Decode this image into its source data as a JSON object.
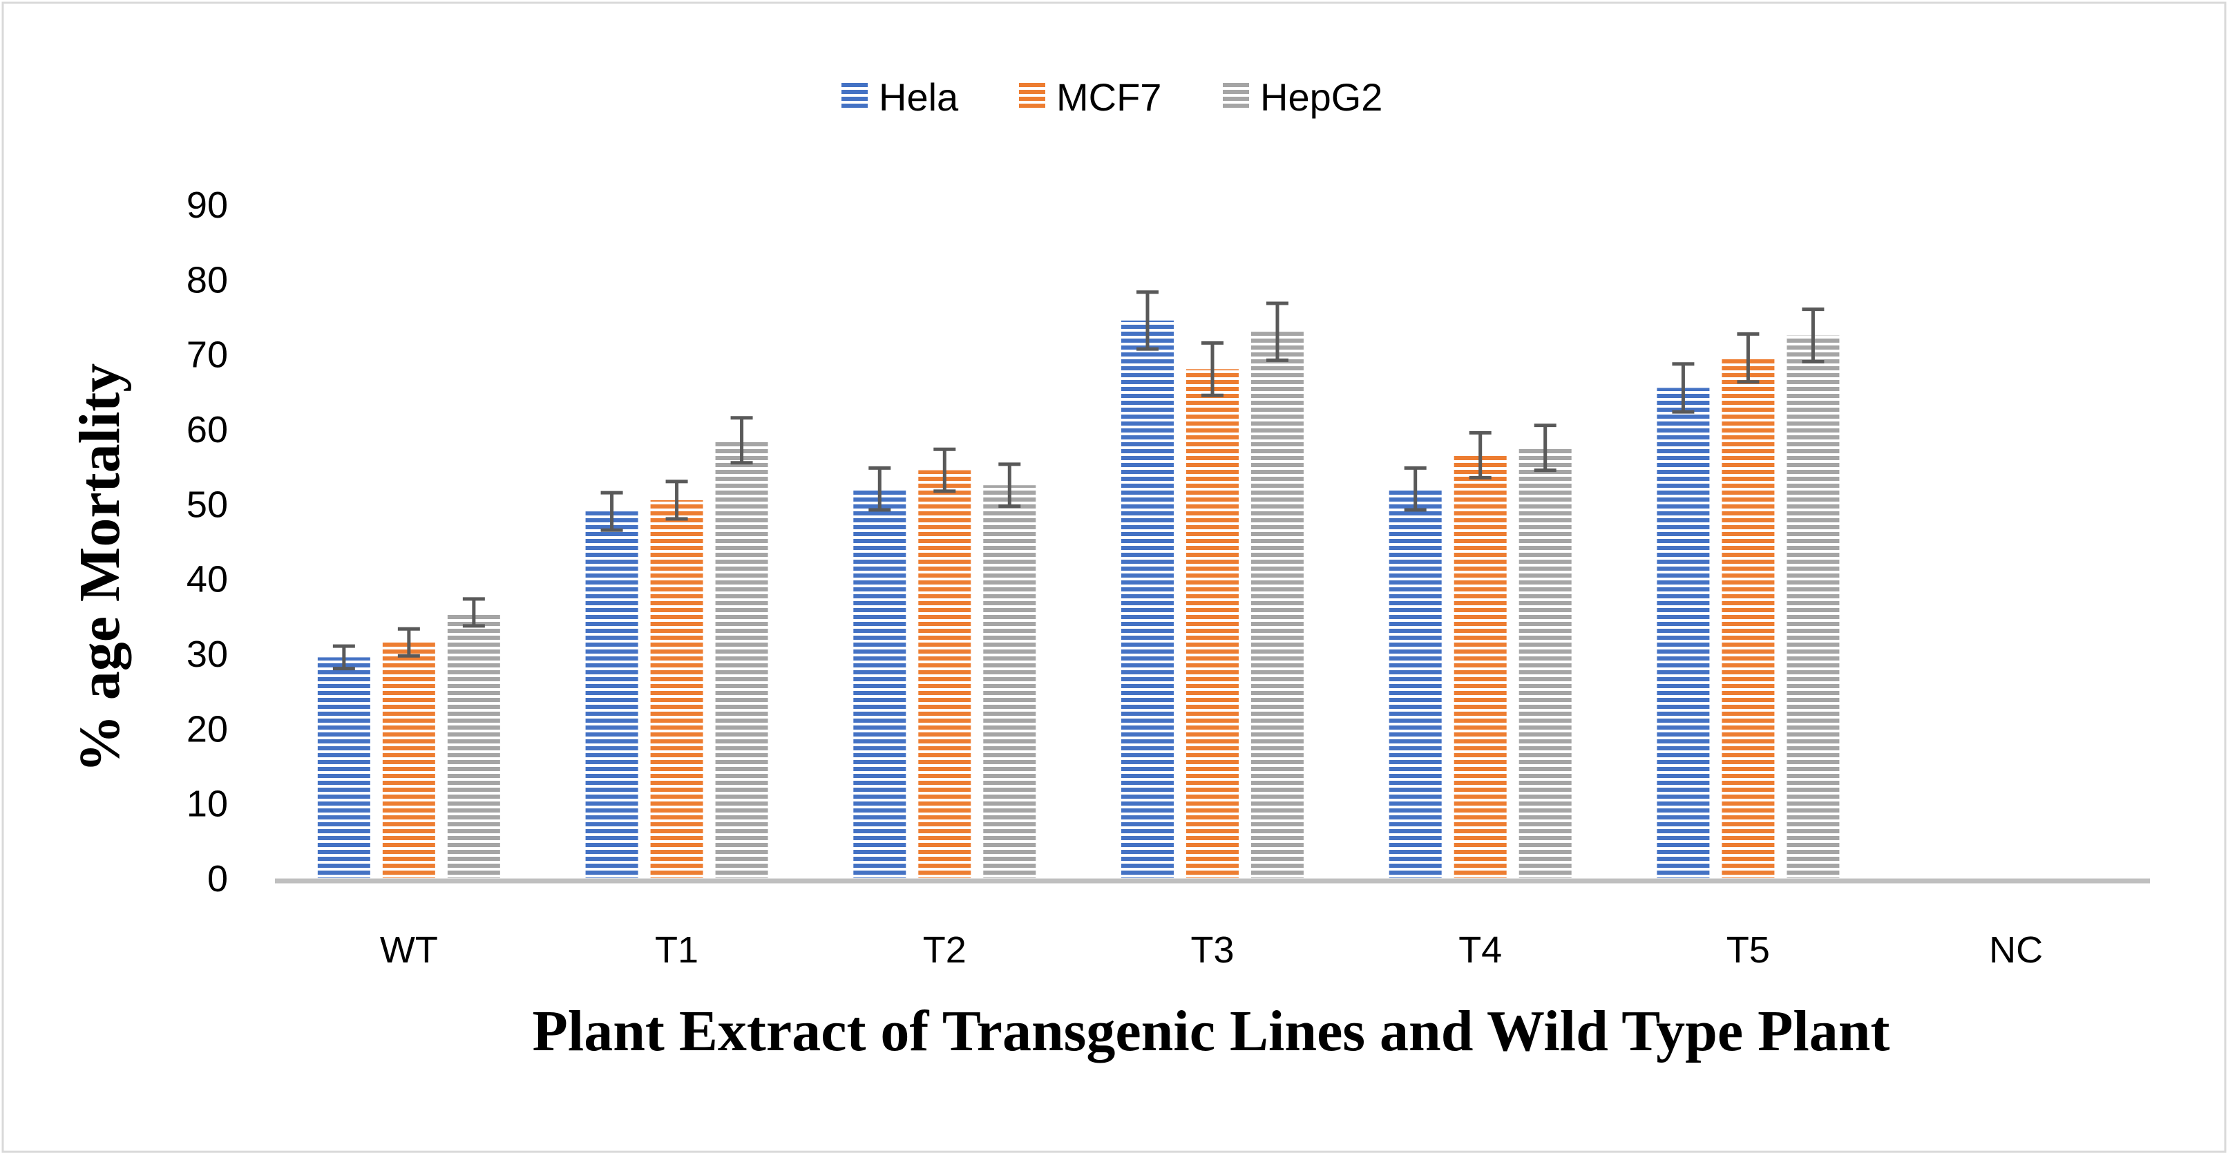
{
  "chart_data": {
    "type": "bar",
    "title": "",
    "xlabel": "Plant Extract of Transgenic Lines and Wild Type Plant",
    "ylabel": "% age Mortality",
    "ylim": [
      0,
      90
    ],
    "yticks": [
      0,
      10,
      20,
      30,
      40,
      50,
      60,
      70,
      80,
      90
    ],
    "grid": false,
    "legend_position": "top-center",
    "categories": [
      "WT",
      "T1",
      "T2",
      "T3",
      "T4",
      "T5",
      "NC"
    ],
    "series": [
      {
        "name": "Hela",
        "color": "#4472C4",
        "values": [
          29.5,
          49,
          52,
          74.5,
          52,
          65.5,
          0
        ],
        "errors": [
          1.5,
          2.5,
          2.8,
          3.8,
          2.8,
          3.2,
          0
        ]
      },
      {
        "name": "MCF7",
        "color": "#ED7D31",
        "values": [
          31.5,
          50.5,
          54.5,
          68,
          56.5,
          69.5,
          0
        ],
        "errors": [
          1.8,
          2.5,
          2.8,
          3.5,
          3.0,
          3.2,
          0
        ]
      },
      {
        "name": "HepG2",
        "color": "#A5A5A5",
        "values": [
          35.5,
          58.5,
          52.5,
          73,
          57.5,
          72.5,
          0
        ],
        "errors": [
          1.8,
          3.0,
          2.8,
          3.8,
          3.0,
          3.5,
          0
        ]
      }
    ]
  }
}
